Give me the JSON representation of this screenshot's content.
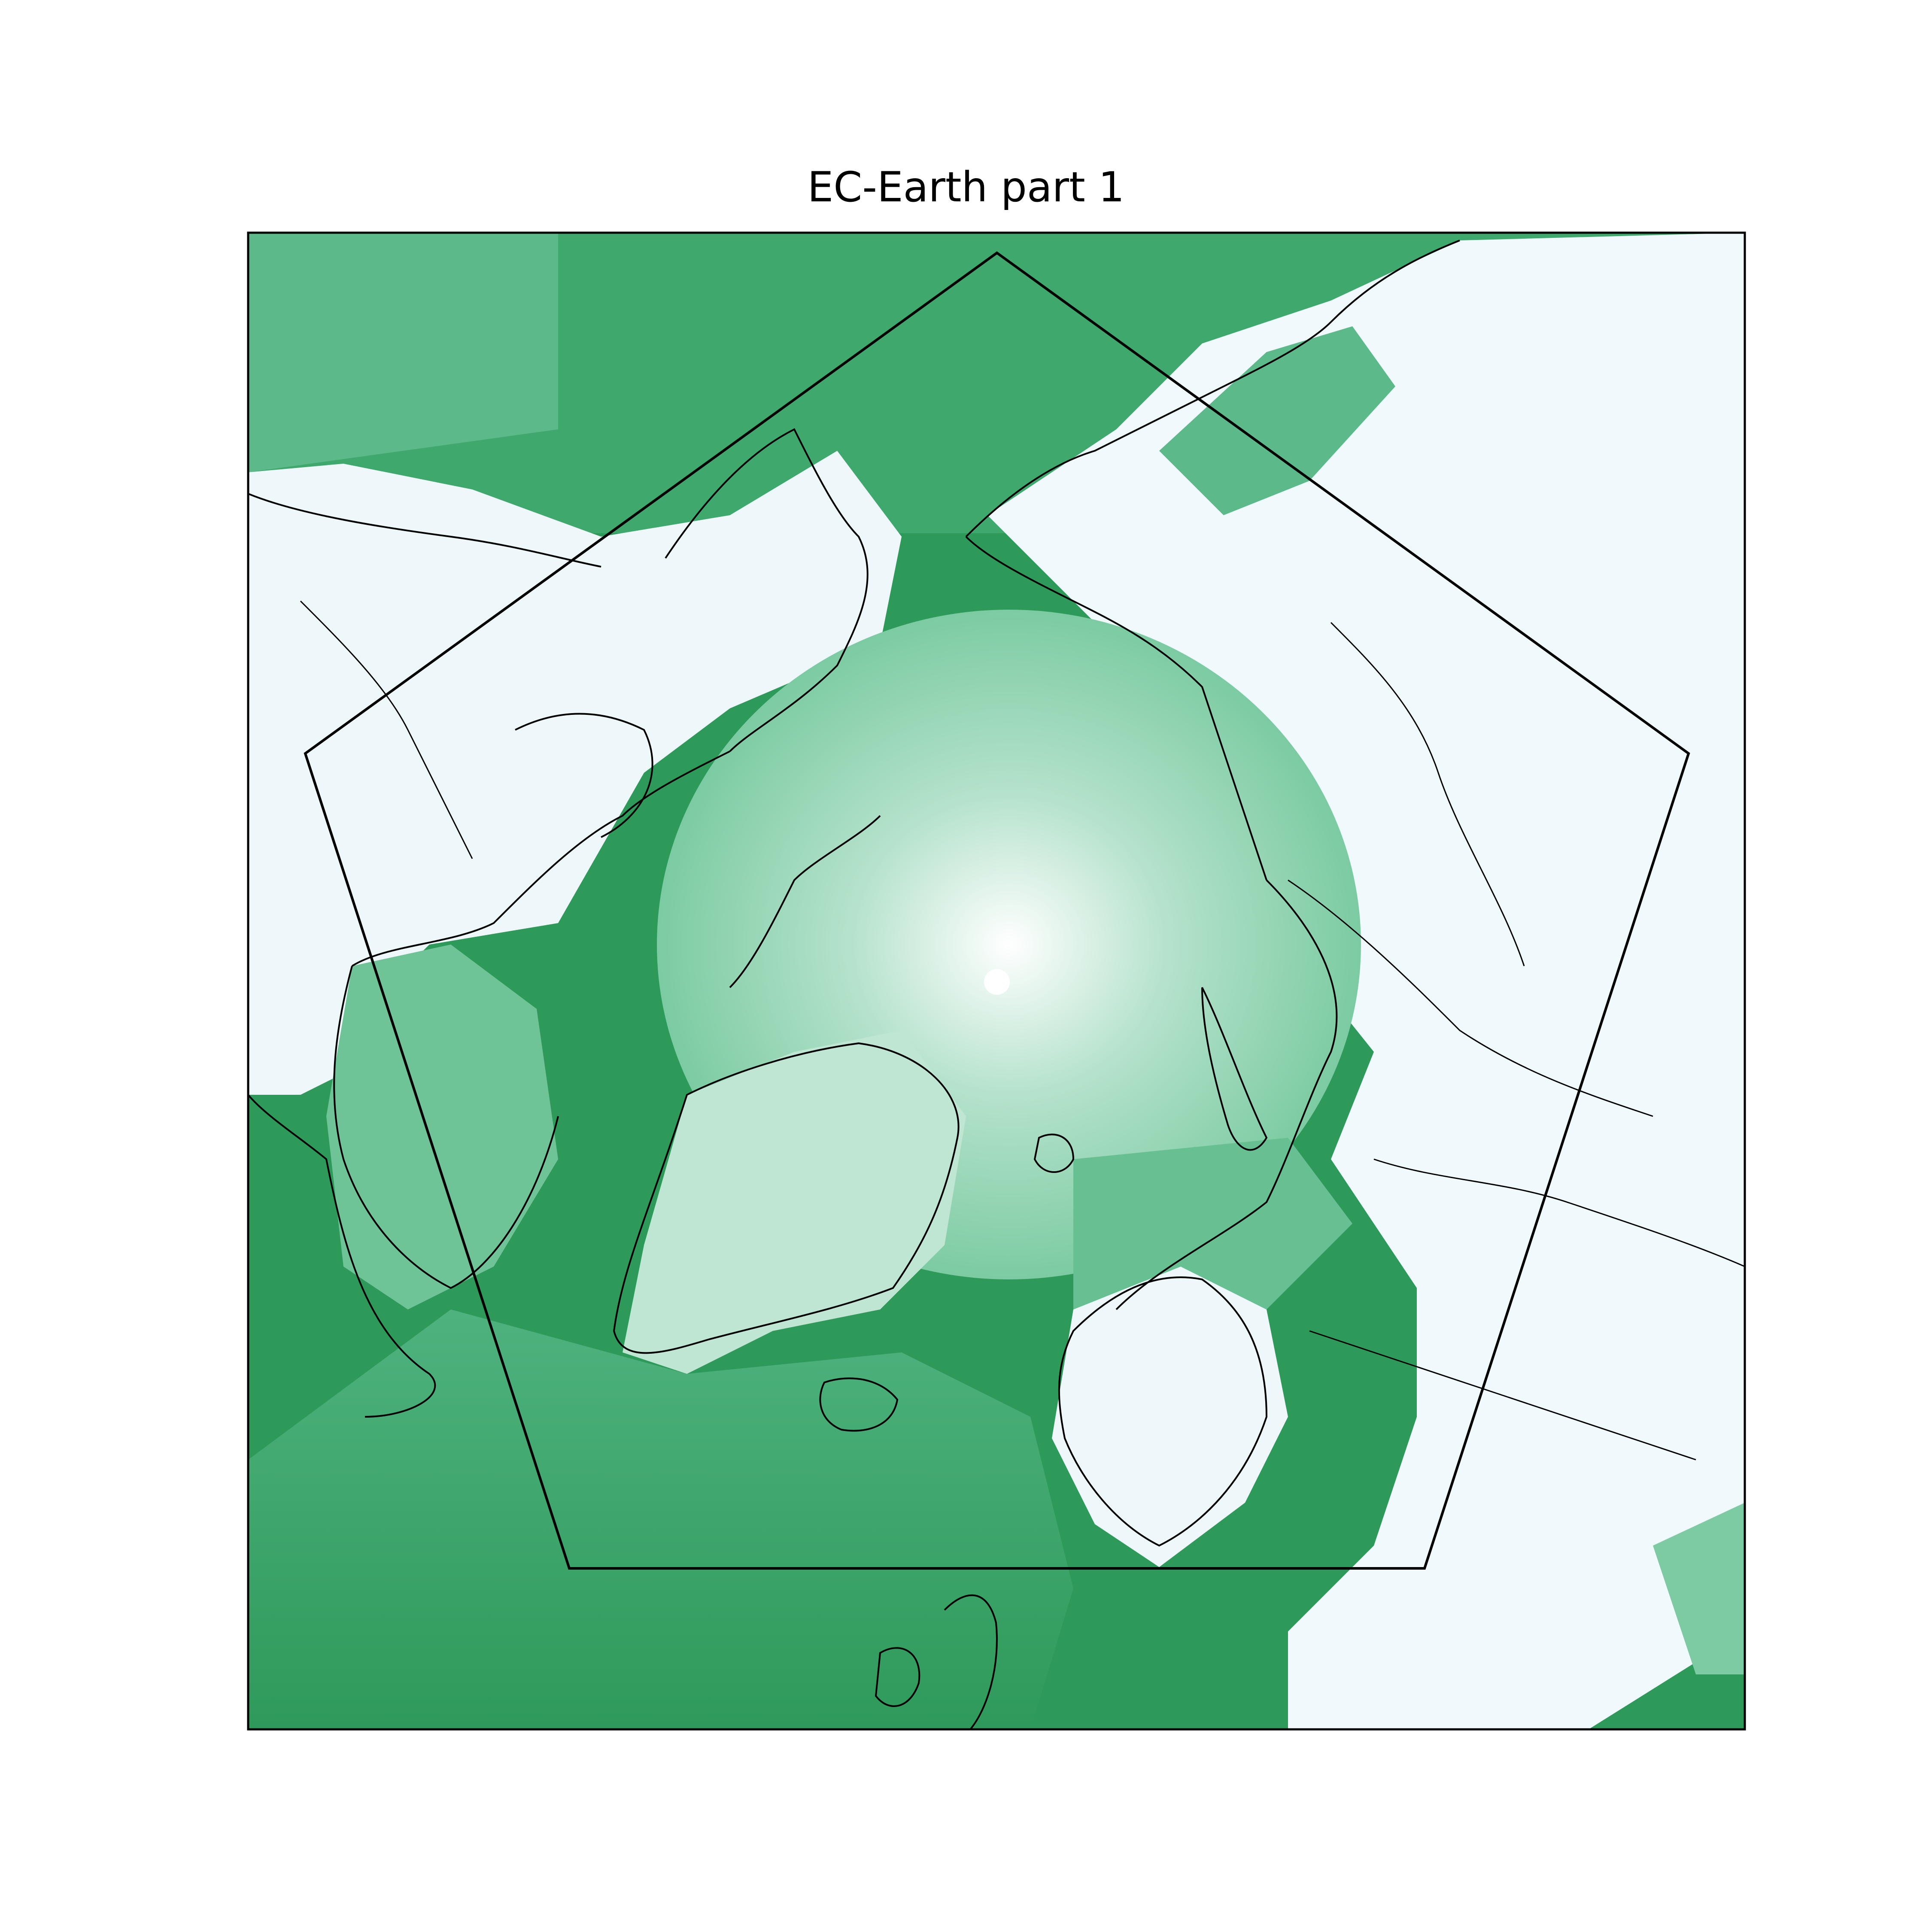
{
  "title": "EC-Earth part 1",
  "colors": {
    "high": "#2e9a5a",
    "mid": "#7ccba2",
    "low": "#eaf6fb",
    "coast": "#000000",
    "boundary": "#000000",
    "frame": "#000000"
  },
  "map": {
    "projection": "north-polar-stereographic",
    "colormap": "white-to-green",
    "boundary_shape": "pentagon",
    "features": [
      "coastlines",
      "rivers-lakes",
      "colour-field",
      "pole-hole"
    ]
  }
}
